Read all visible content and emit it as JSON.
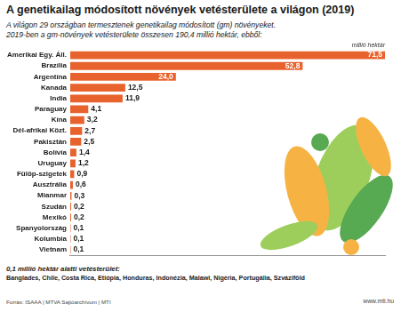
{
  "chart_data": {
    "type": "bar",
    "orientation": "horizontal",
    "title": "A genetikailag módosított növények vetésterülete a világon (2019)",
    "subtitle": [
      "A világon 29 országban termesztenek genetikailag módosított (gm) növényeket.",
      "2019-ben a gm-növények vetésterülete összesen 190,4 millió hektár, ebből:"
    ],
    "xlabel": "millió hektár",
    "categories": [
      "Amerikai Egy. Áll.",
      "Brazília",
      "Argentína",
      "Kanada",
      "India",
      "Paraguay",
      "Kína",
      "Dél-afrikai Közt.",
      "Pakisztán",
      "Bolívia",
      "Uruguay",
      "Fülöp-szigetek",
      "Ausztrália",
      "Mianmar",
      "Szudán",
      "Mexikó",
      "Spanyolország",
      "Kolumbia",
      "Vietnam"
    ],
    "values": [
      71.5,
      52.8,
      24.0,
      12.5,
      11.9,
      4.1,
      3.2,
      2.7,
      2.5,
      1.4,
      1.2,
      0.9,
      0.6,
      0.3,
      0.2,
      0.2,
      0.1,
      0.1,
      0.1
    ],
    "value_labels": [
      "71,5",
      "52,8",
      "24,0",
      "12,5",
      "11,9",
      "4,1",
      "3,2",
      "2,7",
      "2,5",
      "1,4",
      "1,2",
      "0,9",
      "0,6",
      "0,3",
      "0,2",
      "0,2",
      "0,1",
      "0,1",
      "0,1"
    ],
    "color": "#e8622d",
    "xlim": [
      0,
      71.5
    ],
    "grid": false,
    "data_labels": true,
    "tick_labels": "y",
    "annotations": [
      "0,1 millió hektár alatti vetésterület:",
      "Banglades, Chile, Costa Rica, Etiópia, Honduras, Indonézia, Malawi, Nigéria, Portugália, Szváziföld"
    ],
    "source": "Forrás: ISAAA | MTVA Sajtóarchívum | MTI",
    "website": "www.mti.hu"
  }
}
